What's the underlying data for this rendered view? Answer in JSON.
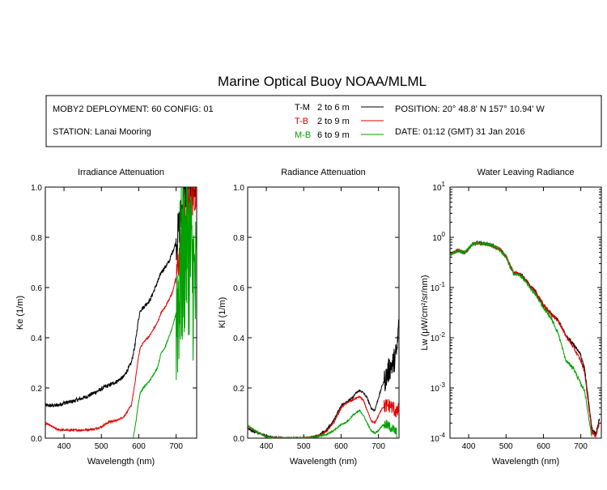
{
  "title": "Marine Optical Buoy NOAA/MLML",
  "header": {
    "deployment": "MOBY2 DEPLOYMENT: 60 CONFIG: 01",
    "station": "STATION: Lanai Mooring",
    "position": "POSITION: 20° 48.8' N   157° 10.94' W",
    "date": "DATE: 01:12 (GMT) 31 Jan 2016"
  },
  "legend": [
    {
      "code": "T-M",
      "range": "2 to 6  m",
      "color": "#000000"
    },
    {
      "code": "T-B",
      "range": "2 to 9  m",
      "color": "#e00000"
    },
    {
      "code": "M-B",
      "range": "6 to 9  m",
      "color": "#00a000"
    }
  ],
  "chart_data": [
    {
      "type": "line",
      "title": "Irradiance Attenuation",
      "xlabel": "Wavelength (nm)",
      "ylabel": "Ke  (1/m)",
      "xlim": [
        350,
        755
      ],
      "ylim": [
        0,
        1
      ],
      "xticks": [
        400,
        500,
        600,
        700
      ],
      "yticks": [
        0.0,
        0.2,
        0.4,
        0.6,
        0.8,
        1.0
      ],
      "ytick_labels": [
        "0.0",
        "0.2",
        "0.4",
        "0.6",
        "0.8",
        "1.0"
      ],
      "series": [
        {
          "name": "T-M",
          "color": "#000000",
          "noise": 0.008,
          "noisy_from": 700,
          "noise_hi": 0.08,
          "x": [
            350,
            380,
            400,
            420,
            440,
            460,
            480,
            500,
            510,
            520,
            540,
            560,
            580,
            590,
            598,
            604,
            612,
            630,
            650,
            660,
            670,
            680,
            690,
            700,
            710,
            720,
            730,
            740,
            750,
            755
          ],
          "y": [
            0.13,
            0.13,
            0.14,
            0.145,
            0.155,
            0.165,
            0.18,
            0.195,
            0.205,
            0.21,
            0.225,
            0.245,
            0.3,
            0.37,
            0.46,
            0.51,
            0.52,
            0.55,
            0.62,
            0.66,
            0.68,
            0.7,
            0.74,
            0.78,
            0.86,
            0.95,
            1.0,
            1.0,
            1.0,
            1.0
          ]
        },
        {
          "name": "T-B",
          "color": "#e00000",
          "noise": 0.004,
          "noisy_from": 700,
          "noise_hi": 0.08,
          "x": [
            350,
            370,
            380,
            400,
            420,
            440,
            460,
            480,
            500,
            510,
            520,
            540,
            560,
            580,
            590,
            598,
            604,
            612,
            630,
            650,
            660,
            670,
            680,
            690,
            700,
            710,
            720,
            730,
            740,
            750,
            755
          ],
          "y": [
            0.06,
            0.045,
            0.035,
            0.032,
            0.032,
            0.032,
            0.033,
            0.036,
            0.045,
            0.055,
            0.065,
            0.07,
            0.085,
            0.13,
            0.22,
            0.31,
            0.36,
            0.38,
            0.41,
            0.46,
            0.5,
            0.52,
            0.55,
            0.58,
            0.64,
            0.74,
            0.85,
            0.92,
            0.95,
            0.98,
            0.98
          ]
        },
        {
          "name": "M-B",
          "color": "#00a000",
          "noise": 0.003,
          "noisy_from": 700,
          "noise_hi": 0.35,
          "x": [
            585,
            592,
            598,
            604,
            612,
            630,
            650,
            660,
            670,
            680,
            690,
            700,
            710,
            720,
            730,
            740,
            750,
            755
          ],
          "y": [
            0.0,
            0.06,
            0.13,
            0.18,
            0.2,
            0.23,
            0.28,
            0.34,
            0.36,
            0.4,
            0.44,
            0.5,
            0.62,
            0.72,
            0.78,
            0.7,
            0.6,
            0.55
          ]
        }
      ]
    },
    {
      "type": "line",
      "title": "Radiance Attenuation",
      "xlabel": "Wavelength (nm)",
      "ylabel": "Kl  (1/m)",
      "xlim": [
        350,
        755
      ],
      "ylim": [
        0,
        1
      ],
      "xticks": [
        400,
        500,
        600,
        700
      ],
      "yticks": [
        0.0,
        0.2,
        0.4,
        0.6,
        0.8,
        1.0
      ],
      "ytick_labels": [
        "0.0",
        "0.2",
        "0.4",
        "0.6",
        "0.8",
        "1.0"
      ],
      "series": [
        {
          "name": "T-M",
          "color": "#000000",
          "noise": 0.004,
          "noisy_from": 715,
          "noise_hi": 0.05,
          "x": [
            350,
            360,
            380,
            400,
            420,
            440,
            460,
            480,
            500,
            520,
            540,
            560,
            580,
            590,
            600,
            610,
            620,
            630,
            640,
            650,
            660,
            670,
            680,
            690,
            700,
            710,
            720,
            730,
            740,
            750,
            755
          ],
          "y": [
            0.04,
            0.03,
            0.02,
            0.008,
            0.003,
            0.0,
            0.0,
            0.0,
            0.0,
            0.003,
            0.012,
            0.03,
            0.07,
            0.1,
            0.13,
            0.14,
            0.15,
            0.16,
            0.18,
            0.19,
            0.18,
            0.16,
            0.12,
            0.11,
            0.16,
            0.21,
            0.24,
            0.28,
            0.3,
            0.35,
            0.48
          ]
        },
        {
          "name": "T-B",
          "color": "#e00000",
          "noise": 0.003,
          "noisy_from": 715,
          "noise_hi": 0.03,
          "x": [
            350,
            360,
            380,
            400,
            420,
            440,
            460,
            480,
            500,
            520,
            540,
            560,
            580,
            590,
            600,
            610,
            620,
            630,
            640,
            650,
            660,
            670,
            680,
            690,
            700,
            710,
            720,
            730,
            740,
            750,
            755
          ],
          "y": [
            0.05,
            0.04,
            0.02,
            0.006,
            0.001,
            0.0,
            0.0,
            0.0,
            0.0,
            0.002,
            0.01,
            0.025,
            0.06,
            0.09,
            0.12,
            0.135,
            0.145,
            0.15,
            0.16,
            0.165,
            0.15,
            0.11,
            0.07,
            0.06,
            0.09,
            0.12,
            0.13,
            0.13,
            0.12,
            0.1,
            0.12
          ]
        },
        {
          "name": "M-B",
          "color": "#00a000",
          "noise": 0.003,
          "noisy_from": 715,
          "noise_hi": 0.02,
          "x": [
            350,
            360,
            380,
            400,
            420,
            440,
            460,
            480,
            500,
            520,
            540,
            560,
            580,
            590,
            600,
            610,
            620,
            630,
            640,
            650,
            660,
            670,
            680,
            690,
            700,
            710,
            720,
            730,
            740,
            750
          ],
          "y": [
            0.05,
            0.04,
            0.02,
            0.005,
            0.001,
            0.0,
            0.0,
            0.0,
            0.0,
            0.002,
            0.008,
            0.015,
            0.03,
            0.04,
            0.055,
            0.06,
            0.07,
            0.09,
            0.1,
            0.11,
            0.09,
            0.06,
            0.03,
            0.02,
            0.03,
            0.05,
            0.055,
            0.045,
            0.035,
            0.02
          ]
        }
      ]
    },
    {
      "type": "line",
      "title": "Water Leaving Radiance",
      "xlabel": "Wavelength (nm)",
      "ylabel": "Lw  (μW/cm²/sr/nm)",
      "yscale": "log",
      "xlim": [
        350,
        755
      ],
      "ylim": [
        0.0001,
        10
      ],
      "xticks": [
        400,
        500,
        600,
        700
      ],
      "yticks": [
        0.0001,
        0.001,
        0.01,
        0.1,
        1,
        10
      ],
      "ytick_base": "10",
      "ytick_exps": [
        "-4",
        "-3",
        "-2",
        "-1",
        "0",
        "1"
      ],
      "series": [
        {
          "name": "T-M",
          "color": "#000000",
          "noise": 0.035,
          "noisy_from": 350,
          "noise_hi": 0.035,
          "x": [
            350,
            370,
            390,
            410,
            420,
            440,
            460,
            480,
            500,
            510,
            520,
            540,
            560,
            580,
            600,
            620,
            640,
            660,
            680,
            700,
            710,
            720,
            730,
            740,
            750
          ],
          "y": [
            0.45,
            0.55,
            0.5,
            0.72,
            0.78,
            0.75,
            0.7,
            0.6,
            0.42,
            0.28,
            0.2,
            0.18,
            0.12,
            0.08,
            0.045,
            0.03,
            0.022,
            0.011,
            0.0075,
            0.0045,
            0.0025,
            0.0006,
            0.00015,
            0.00012,
            0.00025
          ]
        },
        {
          "name": "T-B",
          "color": "#e00000",
          "noise": 0.035,
          "noisy_from": 350,
          "noise_hi": 0.035,
          "x": [
            350,
            370,
            390,
            410,
            420,
            440,
            460,
            480,
            500,
            510,
            520,
            540,
            560,
            580,
            600,
            620,
            640,
            660,
            680,
            700,
            710,
            720,
            730,
            740,
            750
          ],
          "y": [
            0.45,
            0.55,
            0.5,
            0.72,
            0.78,
            0.75,
            0.7,
            0.6,
            0.42,
            0.28,
            0.2,
            0.18,
            0.12,
            0.08,
            0.045,
            0.03,
            0.022,
            0.011,
            0.0065,
            0.0035,
            0.0021,
            0.0005,
            0.00013,
            0.00011,
            0.0002
          ]
        },
        {
          "name": "M-B",
          "color": "#00a000",
          "noise": 0.035,
          "noisy_from": 350,
          "noise_hi": 0.035,
          "x": [
            350,
            370,
            390,
            410,
            420,
            440,
            460,
            480,
            500,
            510,
            520,
            540,
            560,
            580,
            600,
            620,
            640,
            660,
            680,
            700,
            710,
            720,
            730
          ],
          "y": [
            0.45,
            0.55,
            0.5,
            0.72,
            0.78,
            0.75,
            0.7,
            0.6,
            0.4,
            0.26,
            0.19,
            0.17,
            0.11,
            0.07,
            0.04,
            0.025,
            0.012,
            0.0035,
            0.0025,
            0.0012,
            0.0009,
            0.0003,
            0.0001
          ]
        }
      ]
    }
  ]
}
